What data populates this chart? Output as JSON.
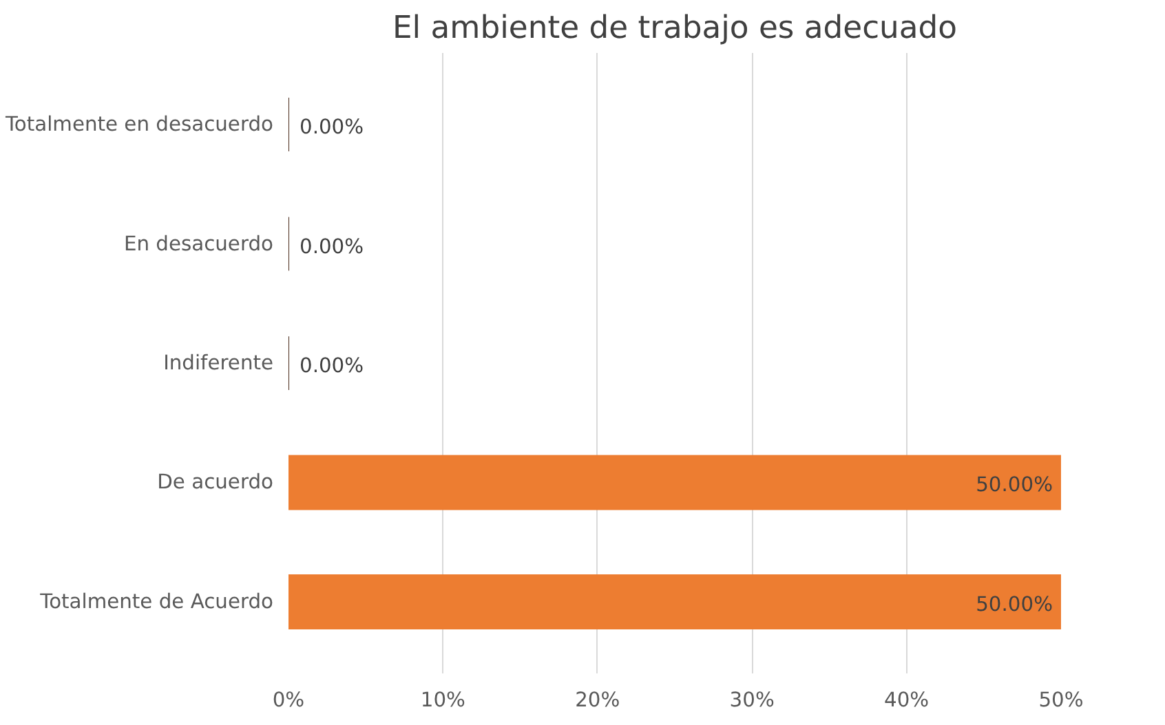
{
  "chart_data": {
    "type": "bar",
    "orientation": "horizontal",
    "title": "El ambiente de trabajo es adecuado",
    "categories": [
      "Totalmente en desacuerdo",
      "En desacuerdo",
      "Indiferente",
      "De acuerdo",
      "Totalmente de Acuerdo"
    ],
    "values": [
      0,
      0,
      0,
      50,
      50
    ],
    "colors": [
      "#4a2a1a",
      "#4a2a1a",
      "#4a2a1a",
      "#ed7d31",
      "#ed7d31"
    ],
    "value_labels": [
      "0.00%",
      "0.00%",
      "0.00%",
      "50.00%",
      "50.00%"
    ],
    "xlim": [
      0,
      50
    ],
    "xticks": [
      {
        "value": 0,
        "label": "0%"
      },
      {
        "value": 10,
        "label": "10%"
      },
      {
        "value": 20,
        "label": "20%"
      },
      {
        "value": 30,
        "label": "30%"
      },
      {
        "value": 40,
        "label": "40%"
      },
      {
        "value": 50,
        "label": "50%"
      }
    ],
    "grid": "x"
  }
}
